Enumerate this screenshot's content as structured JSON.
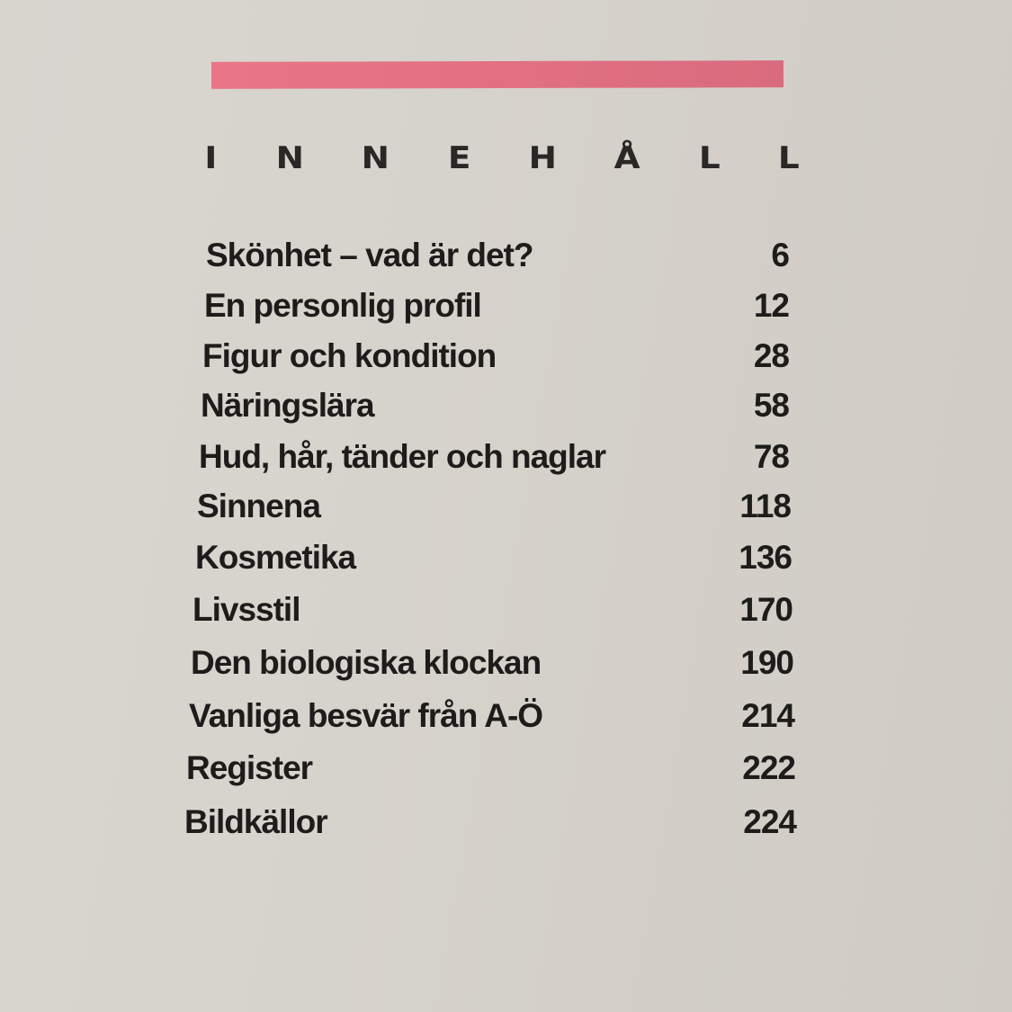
{
  "heading": "INNEHÅLL",
  "accent_color": "#e47384",
  "entries": [
    {
      "title": "Skönhet – vad är det?",
      "page": "6"
    },
    {
      "title": "En personlig profil",
      "page": "12"
    },
    {
      "title": "Figur och kondition",
      "page": "28"
    },
    {
      "title": "Näringslära",
      "page": "58"
    },
    {
      "title": "Hud, hår, tänder och naglar",
      "page": "78"
    },
    {
      "title": "Sinnena",
      "page": "118"
    },
    {
      "title": "Kosmetika",
      "page": "136"
    },
    {
      "title": "Livsstil",
      "page": "170"
    },
    {
      "title": "Den biologiska klockan",
      "page": "190"
    },
    {
      "title": "Vanliga besvär från A-Ö",
      "page": "214"
    },
    {
      "title": "Register",
      "page": "222"
    },
    {
      "title": "Bildkällor",
      "page": "224"
    }
  ]
}
